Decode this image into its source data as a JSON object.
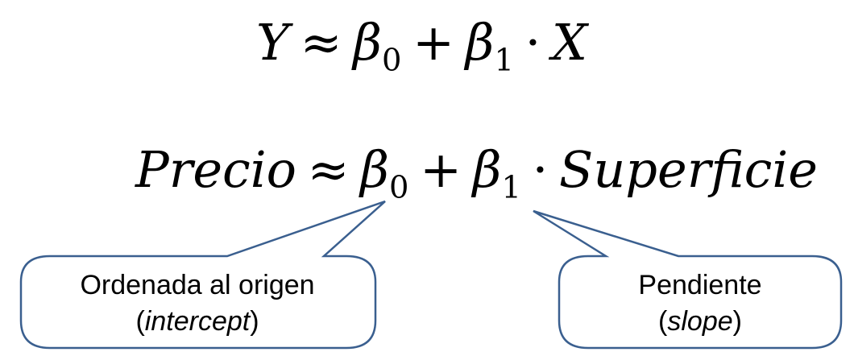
{
  "equation_general": {
    "lhs": "Y",
    "approx": "≈",
    "beta": "β",
    "sub0": "0",
    "plus": "+",
    "sub1": "1",
    "dot": "·",
    "rhs_var": "X"
  },
  "equation_specific": {
    "lhs": "Precio",
    "approx": "≈",
    "beta": "β",
    "sub0": "0",
    "plus": "+",
    "sub1": "1",
    "dot": "·",
    "rhs_var": "Superficie"
  },
  "callouts": {
    "intercept": {
      "line1": "Ordenada al origen",
      "open_paren": "(",
      "term": "intercept",
      "close_paren": ")"
    },
    "slope": {
      "line1": "Pendiente",
      "open_paren": "(",
      "term": "slope",
      "close_paren": ")"
    }
  },
  "colors": {
    "callout_stroke": "#3a5f8f",
    "callout_fill": "#ffffff",
    "text": "#000000"
  }
}
